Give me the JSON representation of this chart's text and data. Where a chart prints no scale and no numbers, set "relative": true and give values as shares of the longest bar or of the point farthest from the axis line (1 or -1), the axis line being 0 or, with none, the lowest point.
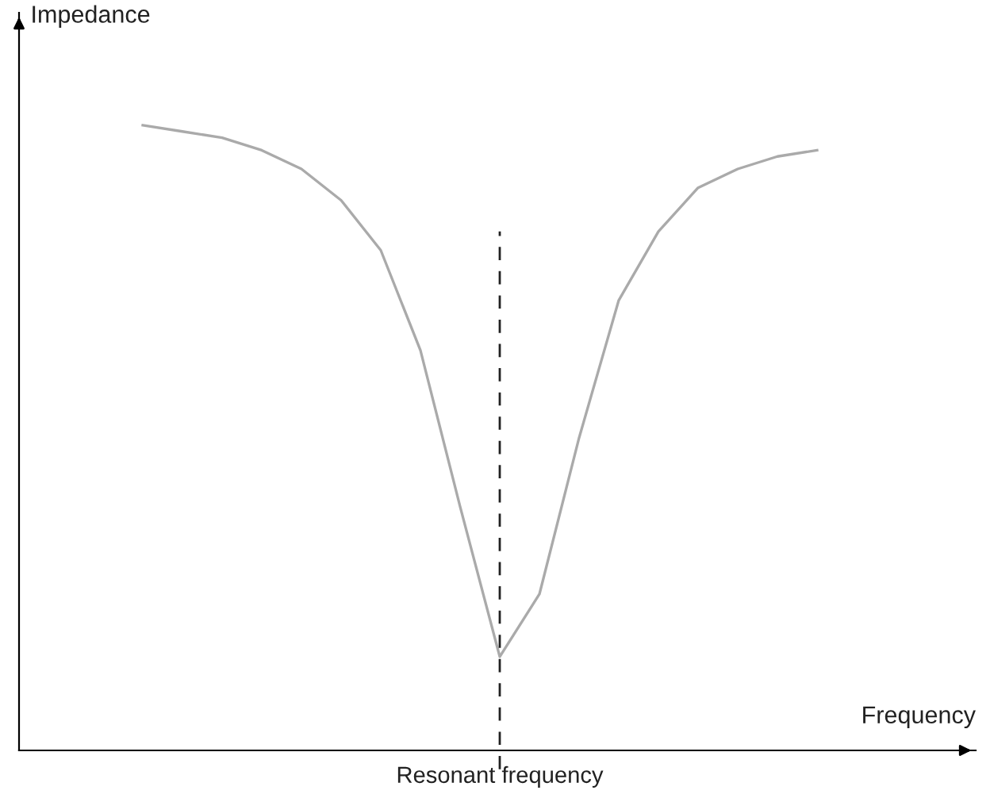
{
  "chart_data": {
    "type": "line",
    "relative": true,
    "xlabel": "Frequency",
    "ylabel": "Impedance",
    "categories": [
      null,
      null,
      null,
      null,
      null,
      null,
      null,
      null,
      null,
      null,
      null,
      null,
      null,
      null,
      null,
      null,
      null,
      null
    ],
    "series": [
      {
        "color": "#aaaaaa",
        "values": [
          1.0,
          0.99,
          0.98,
          0.96,
          0.93,
          0.88,
          0.8,
          0.64,
          0.39,
          0.15,
          0.25,
          0.5,
          0.72,
          0.83,
          0.9,
          0.93,
          0.95,
          0.96
        ]
      }
    ],
    "annotations": [
      "Resonant frequency"
    ],
    "marker": "none",
    "line_style": "solid"
  }
}
